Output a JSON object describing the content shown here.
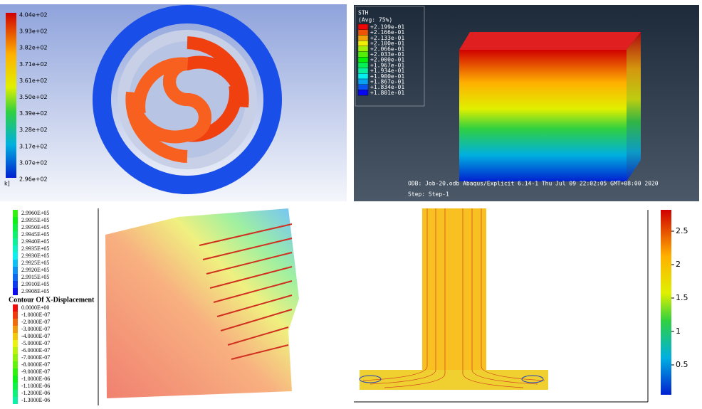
{
  "panel1": {
    "legend": [
      "4.04e+02",
      "3.93e+02",
      "3.82e+02",
      "3.71e+02",
      "3.61e+02",
      "3.50e+02",
      "3.39e+02",
      "3.28e+02",
      "3.17e+02",
      "3.07e+02",
      "2.96e+02"
    ],
    "unit": "k]"
  },
  "panel2": {
    "title": "STH",
    "subtitle": "(Avg: 75%)",
    "legend": [
      "+2.199e-01",
      "+2.166e-01",
      "+2.133e-01",
      "+2.100e-01",
      "+2.066e-01",
      "+2.033e-01",
      "+2.000e-01",
      "+1.967e-01",
      "+1.934e-01",
      "+1.900e-01",
      "+1.867e-01",
      "+1.834e-01",
      "+1.801e-01"
    ],
    "footer": "ODB: Job-20.odb   Abaqus/Explicit 6.14-1   Thu Jul 09 22:02:05 GMT+08:00 2020",
    "step": "Step: Step-1"
  },
  "panel3": {
    "legend_top": [
      "2.9960E+05",
      "2.9955E+05",
      "2.9950E+05",
      "2.9945E+05",
      "2.9940E+05",
      "2.9935E+05",
      "2.9930E+05",
      "2.9925E+05",
      "2.9920E+05",
      "2.9915E+05",
      "2.9910E+05",
      "2.9908E+05"
    ],
    "title": "Contour Of X-Displacement",
    "legend_bottom": [
      "0.0000E+00",
      "-1.0000E-07",
      "-2.0000E-07",
      "-3.0000E-07",
      "-4.0000E-07",
      "-5.0000E-07",
      "-6.0000E-07",
      "-7.0000E-07",
      "-8.0000E-07",
      "-9.0000E-07",
      "-1.0000E-06",
      "-1.1000E-06",
      "-1.2000E-06",
      "-1.3000E-06"
    ]
  },
  "panel4": {
    "colorbar_ticks": [
      "2.5",
      "2",
      "1.5",
      "1",
      "0.5"
    ]
  }
}
